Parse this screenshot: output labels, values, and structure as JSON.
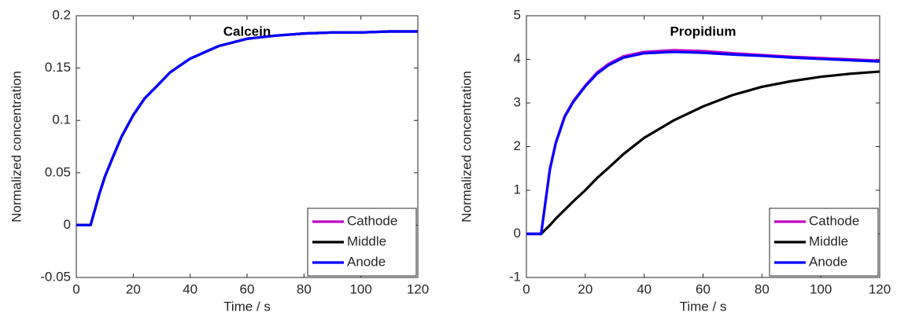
{
  "chart_data": [
    {
      "type": "line",
      "title": "Calcein",
      "x_label": "Time / s",
      "y_label": "Normalized concentration",
      "x": [
        0,
        5,
        8,
        10,
        13,
        16,
        20,
        24,
        28,
        33,
        40,
        50,
        60,
        70,
        80,
        90,
        100,
        110,
        120
      ],
      "series": [
        {
          "name": "Cathode",
          "color": "#bf00bf",
          "values": [
            0,
            0,
            0.029,
            0.046,
            0.066,
            0.085,
            0.105,
            0.121,
            0.132,
            0.146,
            0.159,
            0.171,
            0.178,
            0.181,
            0.183,
            0.184,
            0.184,
            0.185,
            0.185
          ]
        },
        {
          "name": "Middle",
          "color": "#000000",
          "values": [
            0,
            0,
            0.029,
            0.046,
            0.066,
            0.085,
            0.105,
            0.121,
            0.132,
            0.146,
            0.159,
            0.171,
            0.178,
            0.181,
            0.183,
            0.184,
            0.184,
            0.185,
            0.185
          ]
        },
        {
          "name": "Anode",
          "color": "#0000ff",
          "values": [
            0,
            0,
            0.029,
            0.046,
            0.066,
            0.085,
            0.105,
            0.121,
            0.132,
            0.146,
            0.159,
            0.171,
            0.178,
            0.181,
            0.183,
            0.184,
            0.184,
            0.185,
            0.185
          ]
        }
      ],
      "xlim": [
        0,
        120
      ],
      "xticks": [
        0,
        20,
        40,
        60,
        80,
        100,
        120
      ],
      "ylim": [
        -0.05,
        0.2
      ],
      "yticks": [
        -0.05,
        0,
        0.05,
        0.1,
        0.15,
        0.2
      ],
      "legend": "lower right",
      "grid": false
    },
    {
      "type": "line",
      "title": "Propidium",
      "x_label": "Time / s",
      "y_label": "Normalized concentration",
      "x": [
        0,
        5,
        8,
        10,
        13,
        16,
        20,
        24,
        28,
        33,
        40,
        50,
        60,
        70,
        80,
        90,
        100,
        110,
        120
      ],
      "series": [
        {
          "name": "Cathode",
          "color": "#bf00bf",
          "values": [
            0,
            0,
            1.5,
            2.1,
            2.7,
            3.05,
            3.4,
            3.7,
            3.9,
            4.07,
            4.17,
            4.21,
            4.19,
            4.14,
            4.1,
            4.06,
            4.03,
            4.0,
            3.97
          ]
        },
        {
          "name": "Middle",
          "color": "#000000",
          "values": [
            0,
            0,
            0.2,
            0.35,
            0.55,
            0.75,
            1.0,
            1.28,
            1.52,
            1.83,
            2.2,
            2.6,
            2.92,
            3.18,
            3.37,
            3.5,
            3.6,
            3.67,
            3.72
          ]
        },
        {
          "name": "Anode",
          "color": "#0000ff",
          "values": [
            0,
            0,
            1.48,
            2.08,
            2.68,
            3.03,
            3.38,
            3.67,
            3.87,
            4.04,
            4.14,
            4.17,
            4.15,
            4.11,
            4.08,
            4.04,
            4.01,
            3.98,
            3.95
          ]
        }
      ],
      "xlim": [
        0,
        120
      ],
      "xticks": [
        0,
        20,
        40,
        60,
        80,
        100,
        120
      ],
      "ylim": [
        -1,
        5
      ],
      "yticks": [
        -1,
        0,
        1,
        2,
        3,
        4,
        5
      ],
      "legend": "lower right",
      "grid": false
    }
  ]
}
